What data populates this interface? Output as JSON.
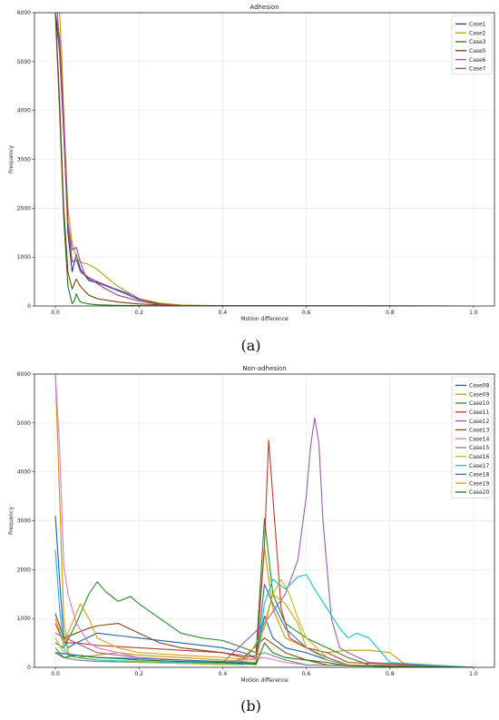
{
  "chart_data": [
    {
      "type": "line",
      "title": "Adhesion",
      "xlabel": "Motion difference",
      "ylabel": "Frequency",
      "xlim": [
        -0.05,
        1.05
      ],
      "ylim": [
        0,
        6000
      ],
      "xticks": [
        0.0,
        0.2,
        0.4,
        0.6,
        0.8,
        1.0
      ],
      "xtick_labels": [
        "0.0",
        "0.2",
        "0.4",
        "0.6",
        "0.8",
        "1.0"
      ],
      "yticks": [
        0,
        1000,
        2000,
        3000,
        4000,
        5000,
        6000
      ],
      "ytick_labels": [
        "0",
        "1000",
        "2000",
        "3000",
        "4000",
        "5000",
        "6000"
      ],
      "grid": true,
      "legend_position": "top-right",
      "caption": "(a)",
      "series": [
        {
          "name": "Case1",
          "color": "#1f3a93",
          "x": [
            0.0,
            0.01,
            0.02,
            0.03,
            0.04,
            0.05,
            0.06,
            0.08,
            0.1,
            0.13,
            0.16,
            0.2,
            0.25,
            0.3,
            0.4,
            0.6,
            1.0
          ],
          "y": [
            6000,
            5200,
            3600,
            1500,
            700,
            1050,
            750,
            520,
            480,
            380,
            280,
            130,
            40,
            10,
            5,
            2,
            0
          ]
        },
        {
          "name": "Case2",
          "color": "#b5a100",
          "x": [
            0.0,
            0.01,
            0.015,
            0.02,
            0.03,
            0.04,
            0.05,
            0.06,
            0.08,
            0.1,
            0.12,
            0.15,
            0.18,
            0.2,
            0.25,
            0.3,
            0.4,
            0.6,
            1.0
          ],
          "y": [
            6000,
            6000,
            5200,
            3800,
            2000,
            1300,
            1000,
            900,
            850,
            750,
            600,
            400,
            250,
            150,
            60,
            20,
            5,
            2,
            0
          ]
        },
        {
          "name": "Case3",
          "color": "#1e7a1e",
          "x": [
            0.0,
            0.01,
            0.02,
            0.03,
            0.04,
            0.045,
            0.05,
            0.055,
            0.06,
            0.08,
            0.1,
            0.15,
            0.2,
            0.3,
            0.6,
            1.0
          ],
          "y": [
            6000,
            4000,
            1800,
            400,
            50,
            100,
            250,
            150,
            80,
            40,
            25,
            12,
            6,
            3,
            1,
            0
          ]
        },
        {
          "name": "Case5",
          "color": "#7a4010",
          "x": [
            0.0,
            0.01,
            0.02,
            0.03,
            0.04,
            0.05,
            0.06,
            0.08,
            0.1,
            0.15,
            0.2,
            0.3,
            0.6,
            1.0
          ],
          "y": [
            6000,
            4200,
            2000,
            700,
            350,
            550,
            400,
            220,
            150,
            80,
            40,
            10,
            2,
            0
          ]
        },
        {
          "name": "Case6",
          "color": "#8e52b5",
          "x": [
            0.0,
            0.005,
            0.01,
            0.02,
            0.03,
            0.04,
            0.05,
            0.06,
            0.07,
            0.08,
            0.1,
            0.12,
            0.14,
            0.16,
            0.18,
            0.2,
            0.22,
            0.25,
            0.3,
            0.4,
            0.6,
            1.0
          ],
          "y": [
            6000,
            6000,
            5200,
            3500,
            1700,
            1150,
            1200,
            900,
            650,
            580,
            500,
            430,
            360,
            300,
            240,
            150,
            80,
            30,
            10,
            3,
            1,
            0
          ]
        },
        {
          "name": "Case7",
          "color": "#a84048",
          "x": [
            0.0,
            0.01,
            0.02,
            0.03,
            0.04,
            0.05,
            0.06,
            0.08,
            0.1,
            0.12,
            0.15,
            0.2,
            0.25,
            0.3,
            0.6,
            1.0
          ],
          "y": [
            6000,
            5500,
            3900,
            1700,
            900,
            950,
            700,
            560,
            460,
            350,
            220,
            100,
            35,
            10,
            2,
            0
          ]
        }
      ]
    },
    {
      "type": "line",
      "title": "Non-adhesion",
      "xlabel": "Motion difference",
      "ylabel": "Frequency",
      "xlim": [
        -0.05,
        1.05
      ],
      "ylim": [
        0,
        6000
      ],
      "xticks": [
        0.0,
        0.2,
        0.4,
        0.6,
        0.8,
        1.0
      ],
      "xtick_labels": [
        "0.0",
        "0.2",
        "0.4",
        "0.6",
        "0.8",
        "1.0"
      ],
      "yticks": [
        0,
        1000,
        2000,
        3000,
        4000,
        5000,
        6000
      ],
      "ytick_labels": [
        "0",
        "1000",
        "2000",
        "3000",
        "4000",
        "5000",
        "6000"
      ],
      "grid": true,
      "legend_position": "top-right",
      "caption": "(b)",
      "series": [
        {
          "name": "Case08",
          "color": "#1f5fa8",
          "x": [
            0.0,
            0.01,
            0.02,
            0.03,
            0.05,
            0.1,
            0.15,
            0.2,
            0.3,
            0.4,
            0.45,
            0.48,
            0.5,
            0.52,
            0.55,
            0.6,
            0.65,
            0.7,
            0.8,
            1.0
          ],
          "y": [
            3100,
            1800,
            600,
            400,
            500,
            700,
            650,
            600,
            500,
            400,
            300,
            200,
            1050,
            600,
            400,
            300,
            150,
            50,
            10,
            0
          ]
        },
        {
          "name": "Case09",
          "color": "#c79a00",
          "x": [
            0.0,
            0.01,
            0.02,
            0.03,
            0.05,
            0.1,
            0.15,
            0.2,
            0.3,
            0.4,
            0.48,
            0.5,
            0.52,
            0.55,
            0.6,
            0.65,
            0.7,
            0.75,
            0.8,
            0.83,
            0.85,
            1.0
          ],
          "y": [
            6000,
            3500,
            1000,
            300,
            200,
            250,
            300,
            250,
            200,
            150,
            100,
            2450,
            1200,
            600,
            400,
            300,
            350,
            350,
            300,
            100,
            10,
            0
          ]
        },
        {
          "name": "Case10",
          "color": "#2a8a2a",
          "x": [
            0.0,
            0.02,
            0.05,
            0.08,
            0.1,
            0.12,
            0.15,
            0.18,
            0.2,
            0.25,
            0.3,
            0.35,
            0.4,
            0.45,
            0.48,
            0.5,
            0.52,
            0.55,
            0.6,
            0.65,
            0.7,
            0.75,
            1.0
          ],
          "y": [
            500,
            400,
            900,
            1500,
            1750,
            1550,
            1350,
            1450,
            1300,
            1000,
            700,
            600,
            550,
            400,
            300,
            3050,
            1500,
            900,
            600,
            400,
            200,
            50,
            0
          ]
        },
        {
          "name": "Case11",
          "color": "#c0392b",
          "x": [
            0.0,
            0.02,
            0.05,
            0.1,
            0.2,
            0.3,
            0.4,
            0.48,
            0.5,
            0.51,
            0.52,
            0.54,
            0.56,
            0.6,
            0.65,
            0.7,
            1.0
          ],
          "y": [
            900,
            500,
            500,
            450,
            400,
            350,
            300,
            200,
            2500,
            4650,
            3500,
            1200,
            600,
            400,
            300,
            100,
            0
          ]
        },
        {
          "name": "Case12",
          "color": "#9b59b6",
          "x": [
            0.0,
            0.05,
            0.1,
            0.2,
            0.3,
            0.4,
            0.5,
            0.55,
            0.58,
            0.6,
            0.61,
            0.62,
            0.63,
            0.64,
            0.66,
            0.68,
            0.7,
            0.75,
            1.0
          ],
          "y": [
            700,
            500,
            300,
            200,
            150,
            100,
            900,
            1500,
            2200,
            3500,
            4500,
            5100,
            4600,
            3000,
            1000,
            400,
            300,
            100,
            0
          ]
        },
        {
          "name": "Case13",
          "color": "#8b4513",
          "x": [
            0.0,
            0.02,
            0.05,
            0.08,
            0.1,
            0.15,
            0.2,
            0.25,
            0.3,
            0.4,
            0.45,
            0.5,
            0.55,
            0.6,
            0.65,
            1.0
          ],
          "y": [
            1100,
            600,
            700,
            800,
            850,
            900,
            700,
            500,
            400,
            300,
            200,
            600,
            300,
            150,
            50,
            0
          ]
        },
        {
          "name": "Case14",
          "color": "#e377c2",
          "x": [
            0.0,
            0.01,
            0.02,
            0.03,
            0.05,
            0.08,
            0.1,
            0.15,
            0.2,
            0.3,
            0.4,
            0.5,
            0.55,
            0.6,
            1.0
          ],
          "y": [
            6000,
            4500,
            2100,
            1500,
            900,
            500,
            400,
            300,
            200,
            150,
            100,
            200,
            100,
            50,
            0
          ]
        },
        {
          "name": "Case15",
          "color": "#7f7f7f",
          "x": [
            0.0,
            0.02,
            0.05,
            0.1,
            0.2,
            0.3,
            0.4,
            0.5,
            0.55,
            0.6,
            1.0
          ],
          "y": [
            400,
            200,
            150,
            120,
            100,
            80,
            60,
            300,
            150,
            50,
            0
          ]
        },
        {
          "name": "Case16",
          "color": "#bcbd22",
          "x": [
            0.0,
            0.02,
            0.05,
            0.1,
            0.2,
            0.3,
            0.4,
            0.45,
            0.5,
            0.52,
            0.54,
            0.56,
            0.58,
            0.6,
            0.65,
            0.7,
            1.0
          ],
          "y": [
            600,
            300,
            200,
            150,
            100,
            80,
            60,
            50,
            800,
            1500,
            1800,
            1500,
            1000,
            600,
            200,
            50,
            0
          ]
        },
        {
          "name": "Case17",
          "color": "#17becf",
          "x": [
            0.0,
            0.01,
            0.02,
            0.03,
            0.05,
            0.1,
            0.2,
            0.3,
            0.4,
            0.48,
            0.5,
            0.52,
            0.55,
            0.58,
            0.6,
            0.62,
            0.65,
            0.68,
            0.7,
            0.72,
            0.75,
            0.8,
            1.0
          ],
          "y": [
            2400,
            1200,
            400,
            250,
            200,
            150,
            120,
            100,
            80,
            60,
            1300,
            1800,
            1600,
            1850,
            1900,
            1600,
            1200,
            800,
            600,
            700,
            600,
            100,
            0
          ]
        },
        {
          "name": "Case18",
          "color": "#3a6fb0",
          "x": [
            0.0,
            0.05,
            0.1,
            0.2,
            0.3,
            0.4,
            0.45,
            0.48,
            0.5,
            0.52,
            0.55,
            0.6,
            0.65,
            0.7,
            1.0
          ],
          "y": [
            300,
            250,
            200,
            180,
            150,
            120,
            100,
            80,
            1700,
            1300,
            800,
            400,
            200,
            50,
            0
          ]
        },
        {
          "name": "Case19",
          "color": "#d4a017",
          "x": [
            0.0,
            0.02,
            0.04,
            0.06,
            0.08,
            0.1,
            0.15,
            0.2,
            0.3,
            0.4,
            0.48,
            0.5,
            0.52,
            0.55,
            0.58,
            0.6,
            0.65,
            0.7,
            1.0
          ],
          "y": [
            1000,
            500,
            900,
            1300,
            1000,
            600,
            400,
            300,
            250,
            200,
            150,
            900,
            1500,
            1300,
            900,
            400,
            150,
            50,
            0
          ]
        },
        {
          "name": "Case20",
          "color": "#1a7a1a",
          "x": [
            0.0,
            0.02,
            0.05,
            0.1,
            0.15,
            0.2,
            0.3,
            0.4,
            0.45,
            0.48,
            0.5,
            0.52,
            0.55,
            0.6,
            0.65,
            0.7,
            1.0
          ],
          "y": [
            300,
            200,
            250,
            200,
            180,
            150,
            120,
            100,
            80,
            60,
            500,
            300,
            200,
            150,
            100,
            30,
            0
          ]
        }
      ]
    }
  ]
}
